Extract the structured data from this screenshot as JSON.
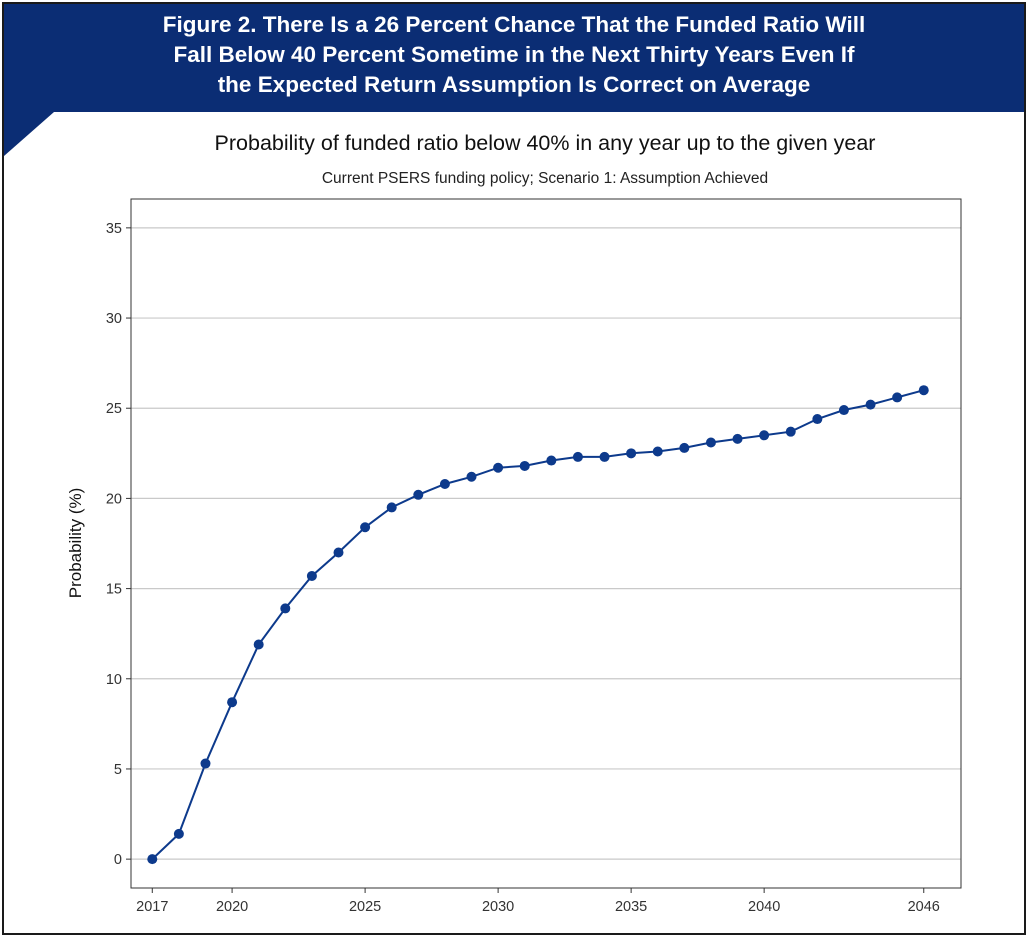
{
  "figure": {
    "heading": "Figure 2. There Is a 26 Percent Chance That the Funded Ratio Will Fall Below 40 Percent Sometime in the Next Thirty Years Even If the Expected Return Assumption Is Correct on Average",
    "heading_lines": [
      "Figure 2. There Is a 26 Percent Chance That the Funded Ratio Will",
      "Fall Below 40 Percent Sometime in the Next Thirty Years Even If",
      "the Expected Return Assumption Is Correct on Average"
    ],
    "banner_color": "#0b2d74"
  },
  "chart_data": {
    "type": "line",
    "title": "Probability of funded ratio below 40% in any year up to the given year",
    "subtitle": "Current PSERS funding policy; Scenario 1: Assumption Achieved",
    "xlabel": "",
    "ylabel": "Probability (%)",
    "x_ticks": [
      2017,
      2020,
      2025,
      2030,
      2035,
      2040,
      2046
    ],
    "y_ticks": [
      0,
      5,
      10,
      15,
      20,
      25,
      30,
      35
    ],
    "xlim": [
      2016.2,
      2047.4
    ],
    "ylim": [
      -1.6,
      36.6
    ],
    "grid": "horizontal",
    "legend": "none",
    "series_color": "#0d3a8c",
    "x": [
      2017,
      2018,
      2019,
      2020,
      2021,
      2022,
      2023,
      2024,
      2025,
      2026,
      2027,
      2028,
      2029,
      2030,
      2031,
      2032,
      2033,
      2034,
      2035,
      2036,
      2037,
      2038,
      2039,
      2040,
      2041,
      2042,
      2043,
      2044,
      2045,
      2046
    ],
    "values": [
      0.0,
      1.4,
      5.3,
      8.7,
      11.9,
      13.9,
      15.7,
      17.0,
      18.4,
      19.5,
      20.2,
      20.8,
      21.2,
      21.7,
      21.8,
      22.1,
      22.3,
      22.3,
      22.5,
      22.6,
      22.8,
      23.1,
      23.3,
      23.5,
      23.7,
      24.4,
      24.9,
      25.2,
      25.6,
      26.0
    ]
  }
}
